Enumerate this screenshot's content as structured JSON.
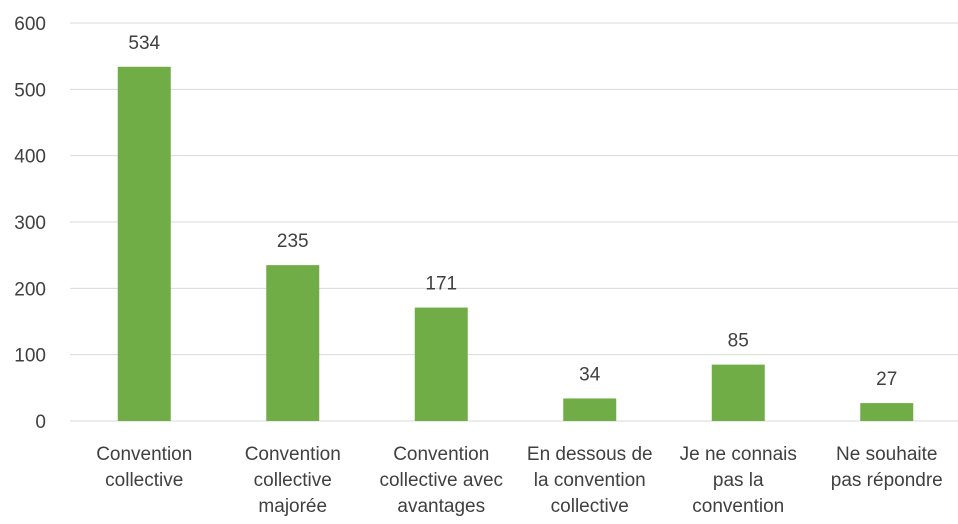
{
  "chart_data": {
    "type": "bar",
    "title": "",
    "xlabel": "",
    "ylabel": "",
    "ylim": [
      0,
      600
    ],
    "yticks": [
      0,
      100,
      200,
      300,
      400,
      500,
      600
    ],
    "grid": true,
    "legend": "none",
    "bar_color": "#70ad47",
    "categories": [
      [
        "Convention",
        "collective"
      ],
      [
        "Convention",
        "collective",
        "majorée"
      ],
      [
        "Convention",
        "collective avec",
        "avantages"
      ],
      [
        "En dessous de",
        "la convention",
        "collective"
      ],
      [
        "Je ne connais",
        "pas la",
        "convention"
      ],
      [
        "Ne souhaite",
        "pas répondre"
      ]
    ],
    "values": [
      534,
      235,
      171,
      34,
      85,
      27
    ],
    "data_labels": [
      "534",
      "235",
      "171",
      "34",
      "85",
      "27"
    ]
  }
}
